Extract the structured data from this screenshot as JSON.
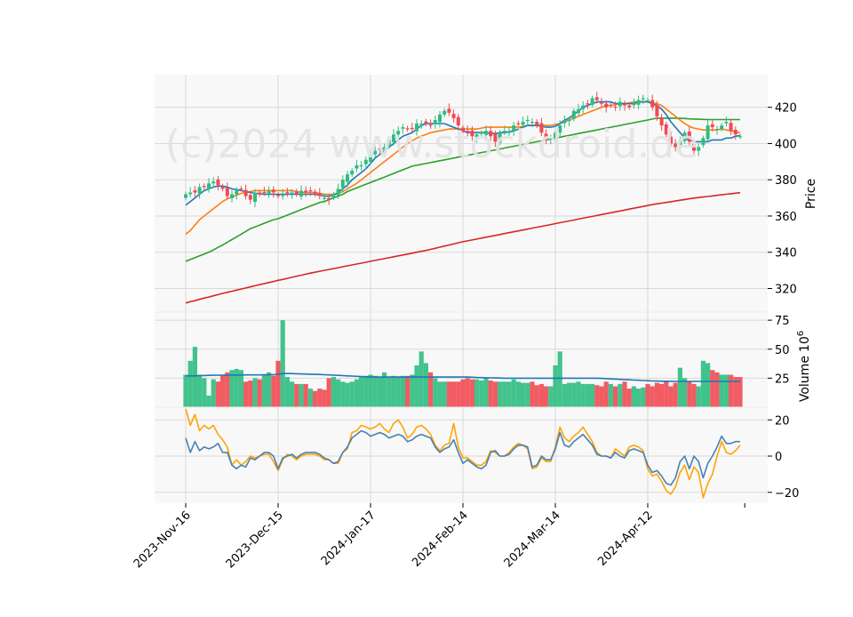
{
  "chart_data": {
    "type": "candlestick",
    "watermark": "(c)2024 www.stockdroid.de",
    "colors": {
      "up": "#2ebd7f",
      "down": "#f04a52",
      "ma_short": "#1f77b4",
      "ma_mid": "#ff7f0e",
      "ma_long": "#2ca02c",
      "ma_200": "#d62728",
      "volume_avg": "#1f77b4",
      "osc_a": "#4682b4",
      "osc_b": "#ffa500",
      "panel_bg": "#f8f8f8",
      "grid": "#d9d9d9"
    },
    "x_tick_labels": [
      "2023-Nov-16",
      "2023-Dec-15",
      "2024-Jan-17",
      "2024-Feb-14",
      "2024-Mar-14",
      "2024-Apr-12"
    ],
    "x_tick_index": [
      0,
      20,
      40,
      60,
      80,
      100
    ],
    "n_sessions": 121,
    "price_panel": {
      "ylabel": "Price",
      "ylim": [
        307,
        438
      ],
      "yticks": [
        320,
        340,
        360,
        380,
        400,
        420
      ],
      "closes": [
        372,
        373,
        373,
        376,
        376,
        378,
        379,
        377,
        375,
        371,
        372,
        374,
        375,
        371,
        369,
        373,
        372,
        373,
        374,
        373,
        371,
        372,
        373,
        373,
        372,
        374,
        373,
        374,
        372,
        371,
        370,
        369,
        372,
        375,
        380,
        383,
        385,
        388,
        388,
        391,
        394,
        396,
        397,
        398,
        402,
        405,
        407,
        409,
        408,
        408,
        411,
        411,
        411,
        410,
        413,
        416,
        418,
        417,
        414,
        410,
        407,
        406,
        404,
        405,
        406,
        407,
        404,
        401,
        406,
        407,
        407,
        410,
        411,
        412,
        413,
        412,
        410,
        406,
        402,
        403,
        406,
        410,
        413,
        413,
        418,
        419,
        421,
        422,
        425,
        424,
        422,
        420,
        421,
        420,
        423,
        421,
        420,
        422,
        424,
        425,
        424,
        420,
        415,
        410,
        405,
        400,
        398,
        402,
        406,
        401,
        396,
        398,
        403,
        410,
        409,
        408,
        410,
        412,
        407,
        405,
        404
      ],
      "ma_short": [
        366,
        368,
        370,
        372,
        374,
        375,
        376,
        376.5,
        376.5,
        376,
        375,
        374.5,
        374,
        373.5,
        373,
        372.5,
        372.2,
        372,
        372,
        372,
        372,
        372,
        372,
        372,
        372,
        372,
        372,
        372,
        372,
        371.5,
        371,
        371,
        371.5,
        373,
        375,
        377,
        380,
        382,
        384,
        386,
        389,
        392,
        394,
        396,
        398,
        400,
        402,
        404,
        405,
        406,
        408,
        410,
        411,
        411,
        411,
        411,
        411,
        410,
        409,
        408,
        407,
        406,
        406,
        406,
        406,
        406,
        405.5,
        405.5,
        406,
        406,
        406.5,
        407,
        408,
        409,
        410,
        410,
        410,
        409.5,
        409,
        409,
        409.5,
        411,
        413,
        414,
        416,
        418,
        420,
        421,
        422,
        423,
        423,
        423,
        423,
        422,
        422,
        422,
        422,
        422,
        423,
        423,
        423,
        422,
        421,
        419,
        416,
        412,
        409,
        406,
        403,
        402,
        401,
        401,
        401,
        401,
        402,
        402,
        402,
        403,
        403,
        404,
        404.5
      ],
      "ma_mid": [
        350,
        352,
        355,
        358,
        360,
        362,
        364,
        366,
        368,
        369.5,
        370.5,
        371.5,
        372.5,
        373,
        373.5,
        374,
        374,
        374,
        374,
        374,
        374,
        374,
        374,
        374,
        373.5,
        373,
        373,
        373,
        373,
        372.5,
        372,
        372,
        372,
        372.5,
        373.5,
        375,
        376.5,
        378,
        380,
        382,
        384,
        386,
        388,
        390,
        392,
        394,
        396,
        398,
        400,
        401.5,
        403,
        404,
        405,
        406,
        406.5,
        407,
        407.5,
        408,
        408,
        408,
        408,
        408,
        408,
        408,
        408.5,
        409,
        409,
        409,
        409,
        409,
        409,
        409,
        409,
        409.5,
        410,
        410,
        410,
        410,
        410,
        410,
        410.5,
        411,
        412,
        413,
        414,
        415,
        416,
        417,
        418,
        419,
        420,
        421,
        421,
        421.5,
        422,
        422,
        422.5,
        423,
        423,
        423,
        423,
        422.5,
        422,
        421,
        419,
        417,
        415,
        413,
        411,
        409.5,
        408.5,
        408,
        407.5,
        407.5,
        407.5,
        407.5,
        408,
        407.5,
        407,
        406.5,
        406
      ],
      "ma_long": [
        335,
        336,
        337,
        338,
        339,
        340,
        341.3,
        342.7,
        344,
        345.5,
        347,
        348.5,
        350,
        351.5,
        353,
        354,
        355,
        356,
        357,
        358,
        358.5,
        359.5,
        360.5,
        361.5,
        362.5,
        363.5,
        364.5,
        365.5,
        366.5,
        367.5,
        368,
        369,
        370,
        371,
        372,
        373.5,
        374.5,
        375.5,
        376.5,
        377.5,
        378.5,
        379.5,
        380.5,
        381.5,
        382.5,
        383.5,
        384.5,
        385.5,
        386.5,
        387.5,
        388,
        388.5,
        389,
        389.5,
        390,
        390.5,
        391,
        391.5,
        392,
        392.5,
        393,
        393.5,
        394,
        394.5,
        395,
        395.5,
        396,
        396.5,
        397,
        397.5,
        398,
        398.5,
        399,
        399.5,
        400,
        400.5,
        401,
        401.5,
        402,
        402.5,
        403,
        403.5,
        404,
        404.5,
        405,
        405.5,
        406,
        406.5,
        407,
        407.5,
        408,
        408.5,
        409,
        409.5,
        410,
        410.5,
        411,
        411.5,
        412,
        412.5,
        413,
        413.5,
        414,
        414,
        414,
        414,
        414,
        414,
        413.8,
        413.6,
        413.5,
        413.4,
        413.3,
        413.2,
        413.2,
        413.2,
        413.2,
        413.2,
        413.2,
        413.2,
        413.2
      ],
      "ma_200": [
        312,
        312.7,
        313.3,
        314,
        314.7,
        315.3,
        316,
        316.6,
        317.3,
        317.9,
        318.5,
        319.1,
        319.7,
        320.3,
        320.9,
        321.5,
        322.1,
        322.7,
        323.3,
        323.9,
        324.5,
        325,
        325.6,
        326.2,
        326.8,
        327.3,
        327.9,
        328.5,
        329,
        329.5,
        330,
        330.5,
        331,
        331.5,
        332,
        332.5,
        333,
        333.5,
        334,
        334.5,
        335,
        335.5,
        336,
        336.5,
        337,
        337.5,
        338,
        338.5,
        339,
        339.5,
        340,
        340.5,
        341,
        341.6,
        342.2,
        342.8,
        343.4,
        344,
        344.6,
        345.2,
        345.8,
        346.3,
        346.8,
        347.3,
        347.8,
        348.3,
        348.8,
        349.3,
        349.8,
        350.3,
        350.8,
        351.3,
        351.8,
        352.3,
        352.8,
        353.3,
        353.8,
        354.3,
        354.8,
        355.3,
        355.8,
        356.3,
        356.8,
        357.3,
        357.8,
        358.3,
        358.8,
        359.3,
        359.8,
        360.3,
        360.8,
        361.3,
        361.8,
        362.3,
        362.8,
        363.3,
        363.8,
        364.3,
        364.8,
        365.3,
        365.8,
        366.3,
        366.7,
        367.1,
        367.5,
        367.9,
        368.3,
        368.7,
        369.1,
        369.5,
        369.9,
        370.2,
        370.5,
        370.8,
        371.1,
        371.4,
        371.7,
        372,
        372.3,
        372.6,
        372.9
      ]
    },
    "volume_panel": {
      "ylabel": "Volume",
      "ylabel_exp": "6",
      "ylim": [
        0,
        82
      ],
      "yticks": [
        25,
        50,
        75
      ],
      "volumes": [
        28,
        40,
        52,
        28,
        25,
        10,
        24,
        22,
        28,
        30,
        32,
        33,
        32,
        22,
        23,
        25,
        24,
        28,
        30,
        27,
        40,
        75,
        26,
        22,
        20,
        20,
        20,
        16,
        14,
        16,
        15,
        25,
        26,
        24,
        22,
        21,
        22,
        24,
        26,
        27,
        28,
        27,
        26,
        30,
        26,
        27,
        26,
        27,
        27,
        28,
        36,
        48,
        38,
        30,
        25,
        22,
        22,
        22,
        22,
        22,
        24,
        25,
        24,
        24,
        23,
        25,
        23,
        22,
        22,
        22,
        22,
        24,
        22,
        21,
        21,
        22,
        19,
        20,
        18,
        18,
        36,
        48,
        20,
        21,
        21,
        22,
        20,
        20,
        20,
        19,
        18,
        22,
        20,
        18,
        20,
        22,
        16,
        18,
        16,
        17,
        20,
        18,
        21,
        20,
        22,
        18,
        21,
        34,
        25,
        22,
        20,
        18,
        40,
        38,
        32,
        30,
        28,
        28,
        28,
        26,
        26
      ],
      "avg": [
        27,
        27,
        27,
        27.2,
        27.3,
        27.4,
        27.5,
        27.6,
        27.6,
        27.7,
        27.7,
        27.7,
        27.7,
        27.8,
        27.8,
        27.8,
        27.8,
        27.9,
        27.9,
        28,
        28.5,
        29,
        29,
        29,
        28.8,
        28.7,
        28.6,
        28.4,
        28.3,
        28.2,
        28,
        27.8,
        27.6,
        27.4,
        27.2,
        27,
        26.8,
        26.6,
        26.4,
        26.2,
        26,
        26,
        26,
        26,
        26,
        26,
        26,
        26,
        26,
        26,
        26,
        26,
        26,
        26,
        26,
        26,
        26,
        26,
        26,
        26,
        26,
        26,
        25.8,
        25.6,
        25.5,
        25.4,
        25.3,
        25.2,
        25.1,
        25,
        25,
        25,
        25,
        25,
        25,
        25,
        25,
        25,
        25,
        25,
        25,
        25,
        25,
        25,
        25,
        25,
        25,
        25,
        25,
        25,
        24.8,
        24.6,
        24.4,
        24.2,
        24,
        23.8,
        23.6,
        23.4,
        23.2,
        23,
        22.8,
        22.6,
        22.5,
        22.4,
        22.4,
        22.3,
        22.2,
        22.2,
        22.2,
        22.2,
        22.2,
        22.2,
        22.2,
        22.2,
        22.2,
        22.2,
        22.2,
        22.2,
        22.2,
        22.2,
        22.2
      ]
    },
    "oscillator_panel": {
      "ylim": [
        -26,
        27
      ],
      "yticks": [
        20,
        0,
        -20
      ],
      "series_a": [
        10,
        2,
        8,
        3,
        5,
        4,
        5,
        7,
        2,
        2,
        -5,
        -7,
        -5,
        -6,
        -1,
        -2,
        0,
        2,
        2,
        0,
        -7,
        -1,
        0,
        1,
        -1,
        1,
        2,
        2,
        2,
        1,
        -1,
        -2,
        -4,
        -3,
        2,
        5,
        10,
        12,
        14,
        13,
        11,
        12,
        13,
        12,
        10,
        11,
        12,
        11,
        8,
        9,
        11,
        12,
        11,
        10,
        5,
        2,
        4,
        5,
        9,
        2,
        -4,
        -2,
        -4,
        -6,
        -7,
        -5,
        2,
        3,
        0,
        0,
        1,
        4,
        6,
        6,
        5,
        -6,
        -5,
        0,
        -2,
        -2,
        4,
        13,
        6,
        5,
        8,
        10,
        12,
        9,
        6,
        1,
        0,
        0,
        -1,
        2,
        0,
        -1,
        3,
        4,
        3,
        2,
        -5,
        -9,
        -8,
        -11,
        -15,
        -16,
        -12,
        -3,
        0,
        -7,
        0,
        -3,
        -12,
        -4,
        0,
        5,
        11,
        7,
        7,
        8,
        8
      ],
      "series_b": [
        26,
        17,
        23,
        14,
        17,
        15,
        17,
        12,
        9,
        5,
        -5,
        -2,
        -5,
        -3,
        0,
        -1,
        0,
        1,
        1,
        -3,
        -8,
        -2,
        1,
        0,
        -2,
        0,
        1,
        1,
        1,
        0,
        -2,
        -2,
        -4,
        -4,
        2,
        4,
        13,
        14,
        17,
        16,
        15,
        16,
        18,
        15,
        13,
        18,
        20,
        16,
        10,
        12,
        16,
        17,
        15,
        12,
        6,
        3,
        6,
        7,
        18,
        5,
        -1,
        -1,
        -3,
        -5,
        -5,
        -3,
        3,
        2,
        0,
        0,
        2,
        5,
        7,
        6,
        4,
        -7,
        -6,
        -1,
        -3,
        -3,
        5,
        16,
        10,
        8,
        11,
        13,
        16,
        12,
        8,
        2,
        0,
        0,
        -1,
        4,
        2,
        0,
        5,
        6,
        5,
        3,
        -7,
        -11,
        -10,
        -14,
        -19,
        -21,
        -17,
        -9,
        -5,
        -13,
        -6,
        -9,
        -23,
        -15,
        -10,
        0,
        8,
        2,
        1,
        3,
        6
      ]
    }
  }
}
